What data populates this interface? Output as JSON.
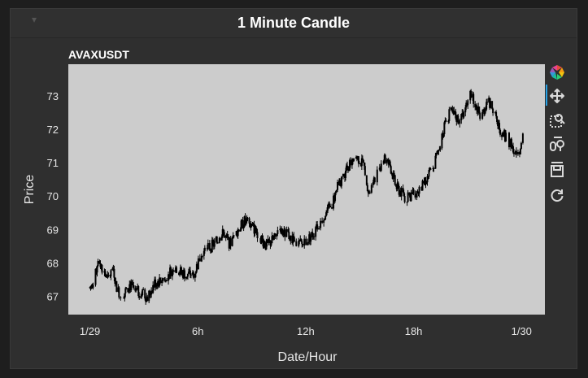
{
  "window": {
    "title": "1 Minute Candle",
    "collapse_icon": "collapse-arrow-icon"
  },
  "toolbar": {
    "tools": [
      {
        "name": "bokeh-logo-icon"
      },
      {
        "name": "pan-tool-icon",
        "active": true
      },
      {
        "name": "box-zoom-tool-icon"
      },
      {
        "name": "wheel-zoom-tool-icon"
      },
      {
        "name": "save-tool-icon"
      },
      {
        "name": "reset-tool-icon"
      }
    ]
  },
  "colors": {
    "background": "#1e1e1e",
    "panel": "#2f2f2f",
    "plot_area": "#cccccc",
    "candle": "#000000",
    "active_tool": "#26a1e6"
  },
  "chart_data": {
    "type": "candlestick",
    "title": "AVAXUSDT",
    "xlabel": "Date/Hour",
    "ylabel": "Price",
    "xlim_hours": [
      -1.2,
      25.3
    ],
    "ylim": [
      66.45,
      73.95
    ],
    "xticks": [
      {
        "label": "1/29",
        "hour": 0
      },
      {
        "label": "6h",
        "hour": 6
      },
      {
        "label": "12h",
        "hour": 12
      },
      {
        "label": "18h",
        "hour": 18
      },
      {
        "label": "1/30",
        "hour": 24
      }
    ],
    "yticks": [
      67,
      68,
      69,
      70,
      71,
      72,
      73
    ],
    "grid": false,
    "series_points": [
      [
        0.0,
        67.25
      ],
      [
        0.3,
        67.6
      ],
      [
        0.45,
        68.15
      ],
      [
        0.7,
        67.8
      ],
      [
        1.0,
        67.5
      ],
      [
        1.3,
        67.85
      ],
      [
        1.5,
        67.2
      ],
      [
        1.8,
        67.0
      ],
      [
        2.2,
        67.35
      ],
      [
        2.5,
        67.15
      ],
      [
        2.9,
        67.1
      ],
      [
        3.2,
        66.95
      ],
      [
        3.6,
        67.4
      ],
      [
        4.0,
        67.5
      ],
      [
        4.4,
        67.7
      ],
      [
        4.7,
        67.9
      ],
      [
        5.1,
        67.7
      ],
      [
        5.4,
        67.65
      ],
      [
        5.8,
        67.7
      ],
      [
        6.1,
        68.1
      ],
      [
        6.5,
        68.4
      ],
      [
        7.0,
        68.6
      ],
      [
        7.4,
        68.9
      ],
      [
        7.8,
        68.55
      ],
      [
        8.2,
        68.95
      ],
      [
        8.6,
        69.25
      ],
      [
        9.0,
        69.1
      ],
      [
        9.4,
        68.85
      ],
      [
        9.8,
        68.5
      ],
      [
        10.2,
        68.7
      ],
      [
        10.6,
        68.9
      ],
      [
        11.0,
        68.85
      ],
      [
        11.4,
        68.6
      ],
      [
        11.8,
        68.55
      ],
      [
        12.2,
        68.75
      ],
      [
        12.6,
        69.0
      ],
      [
        13.0,
        69.4
      ],
      [
        13.4,
        69.7
      ],
      [
        13.8,
        70.3
      ],
      [
        14.1,
        70.6
      ],
      [
        14.4,
        70.9
      ],
      [
        14.7,
        71.2
      ],
      [
        15.0,
        71.1
      ],
      [
        15.3,
        70.8
      ],
      [
        15.5,
        70.1
      ],
      [
        15.8,
        70.4
      ],
      [
        16.1,
        70.9
      ],
      [
        16.4,
        71.1
      ],
      [
        16.7,
        70.9
      ],
      [
        17.0,
        70.3
      ],
      [
        17.3,
        70.1
      ],
      [
        17.6,
        69.9
      ],
      [
        18.0,
        70.1
      ],
      [
        18.4,
        70.2
      ],
      [
        18.8,
        70.6
      ],
      [
        19.1,
        70.9
      ],
      [
        19.4,
        71.4
      ],
      [
        19.7,
        72.1
      ],
      [
        20.0,
        72.5
      ],
      [
        20.3,
        72.4
      ],
      [
        20.6,
        72.2
      ],
      [
        20.9,
        72.8
      ],
      [
        21.2,
        73.1
      ],
      [
        21.5,
        72.6
      ],
      [
        21.8,
        72.4
      ],
      [
        22.1,
        72.9
      ],
      [
        22.4,
        72.6
      ],
      [
        22.7,
        72.1
      ],
      [
        23.0,
        71.85
      ],
      [
        23.3,
        71.6
      ],
      [
        23.6,
        71.4
      ],
      [
        23.8,
        71.35
      ],
      [
        24.0,
        71.5
      ],
      [
        24.1,
        71.95
      ]
    ]
  }
}
